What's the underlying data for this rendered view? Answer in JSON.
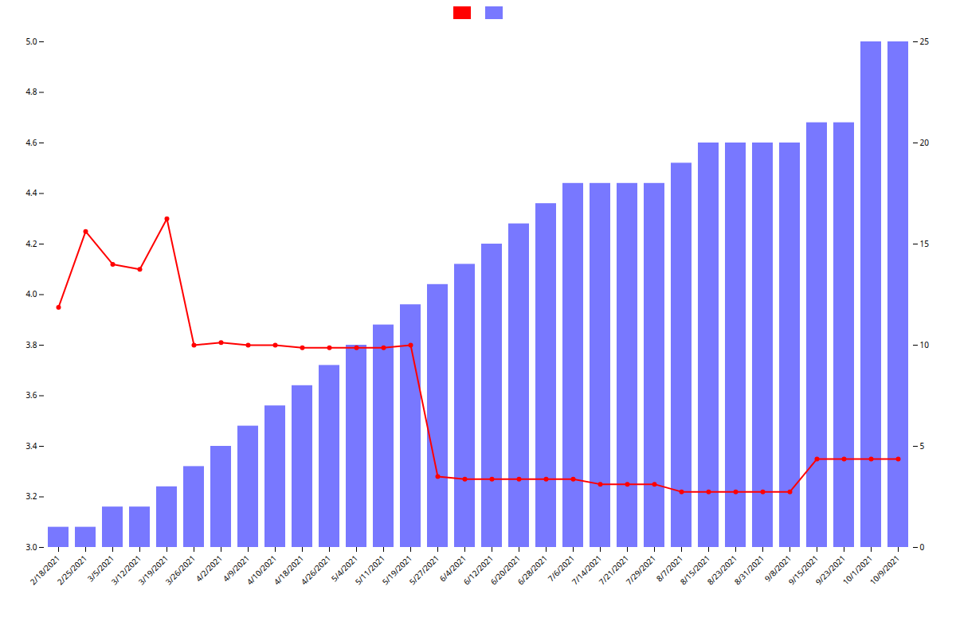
{
  "chart_data": {
    "type": "bar",
    "categories": [
      "2/18/2021",
      "2/25/2021",
      "3/5/2021",
      "3/12/2021",
      "3/19/2021",
      "3/26/2021",
      "4/2/2021",
      "4/9/2021",
      "4/10/2021",
      "4/18/2021",
      "4/26/2021",
      "5/4/2021",
      "5/11/2021",
      "5/19/2021",
      "5/27/2021",
      "6/4/2021",
      "6/12/2021",
      "6/20/2021",
      "6/28/2021",
      "7/6/2021",
      "7/14/2021",
      "7/21/2021",
      "7/29/2021",
      "8/7/2021",
      "8/15/2021",
      "8/23/2021",
      "8/31/2021",
      "9/8/2021",
      "9/15/2021",
      "9/23/2021",
      "10/1/2021",
      "10/9/2021"
    ],
    "series": [
      {
        "type": "line",
        "color": "#ff0000",
        "marker": "circle",
        "values": [
          3.95,
          4.25,
          4.12,
          4.1,
          4.3,
          3.8,
          3.81,
          3.8,
          3.8,
          3.79,
          3.79,
          3.79,
          3.79,
          3.8,
          3.28,
          3.27,
          3.27,
          3.27,
          3.27,
          3.27,
          3.25,
          3.25,
          3.25,
          3.22,
          3.22,
          3.22,
          3.22,
          3.22,
          3.35,
          3.35,
          3.35,
          3.35
        ]
      },
      {
        "type": "bar",
        "color": "#7878ff",
        "axis": "y2",
        "values": [
          1,
          1,
          2,
          2,
          3,
          4,
          5,
          6,
          7,
          8,
          9,
          10,
          11,
          12,
          13,
          14,
          15,
          16,
          17,
          18,
          18,
          18,
          18,
          19,
          20,
          20,
          20,
          20,
          21,
          21,
          25,
          25
        ]
      }
    ],
    "ylim": [
      3.0,
      5.0
    ],
    "yticks": [
      {
        "value": 3.0,
        "label": "3.0"
      },
      3.2,
      3.4,
      3.6,
      3.8,
      {
        "value": 4.0,
        "label": "4.0"
      },
      4.2,
      4.4,
      4.6,
      4.8,
      {
        "value": 5.0,
        "label": "5.0"
      }
    ],
    "y2lim": [
      0,
      25
    ],
    "y2ticks": [
      0,
      5,
      10,
      15,
      20,
      25
    ],
    "grid": false,
    "legend": "top"
  }
}
